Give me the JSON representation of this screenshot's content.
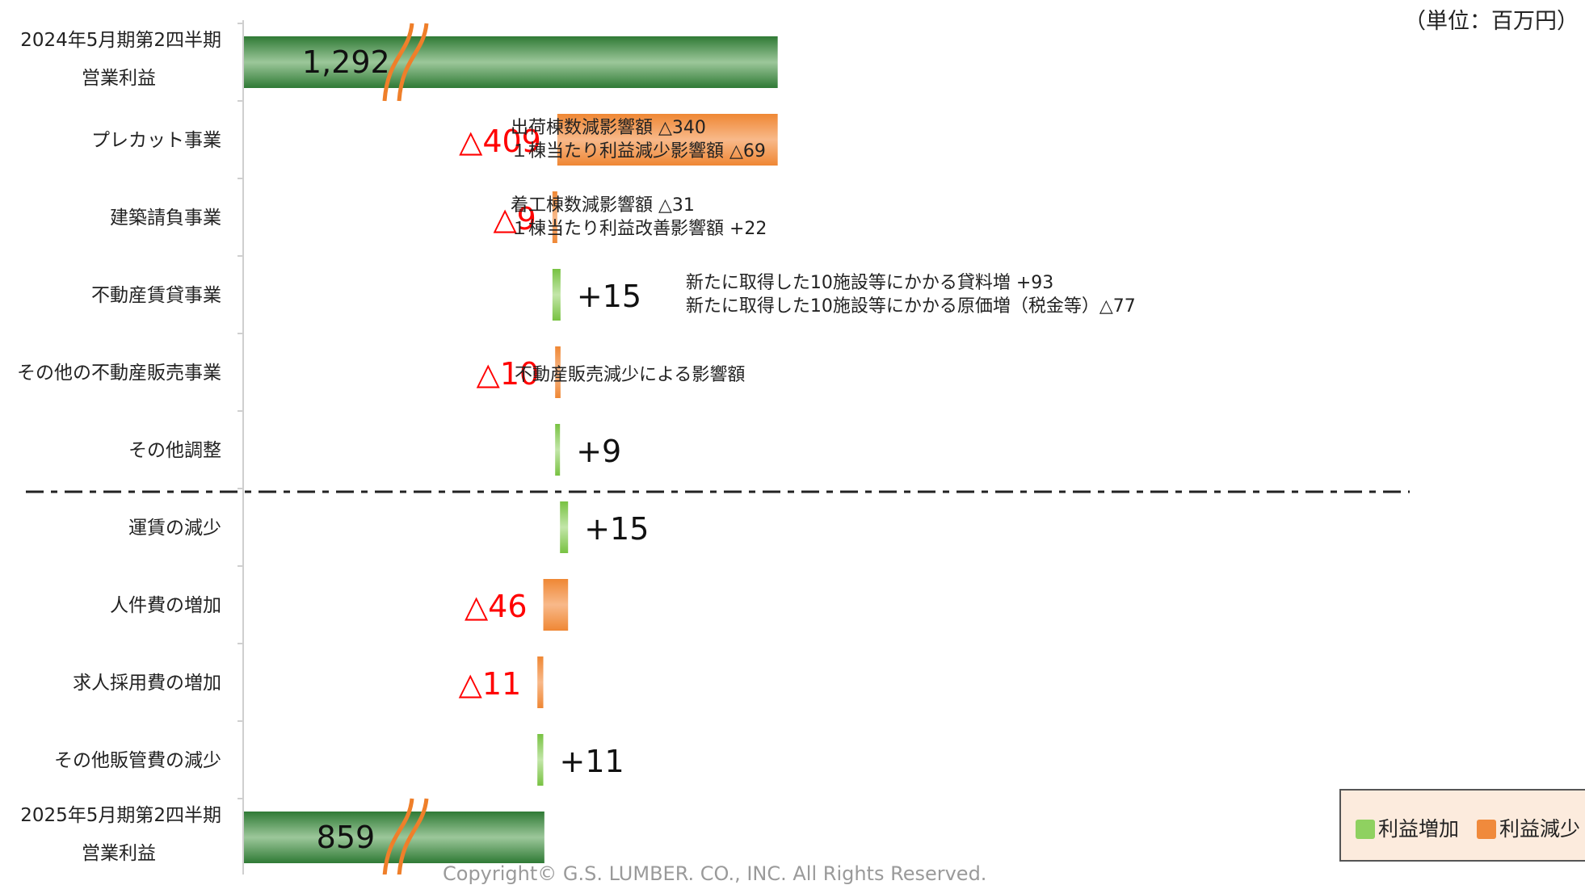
{
  "unit_label": "（単位：百万円）",
  "copyright": "Copyright© G.S. LUMBER. CO., INC. All Rights Reserved.",
  "legend": {
    "increase_label": "利益増加",
    "decrease_label": "利益減少",
    "increase_color": "#8fd160",
    "decrease_color": "#f08a3c",
    "total_color": "#2e7d32",
    "break_color": "#ef7f2a"
  },
  "chart_data": {
    "type": "bar",
    "subtype": "waterfall",
    "orientation": "horizontal",
    "categories": [
      "2024年5月期第2四半期\n営業利益",
      "プレカット事業",
      "建築請負事業",
      "不動産賃貸事業",
      "その他の不動産販売事業",
      "その他調整",
      "運賃の減少",
      "人件費の増加",
      "求人採用費の増加",
      "その他販管費の減少",
      "2025年5月期第2四半期\n営業利益"
    ],
    "values": [
      1292,
      -409,
      -9,
      15,
      -10,
      9,
      15,
      -46,
      -11,
      11,
      859
    ],
    "kinds": [
      "total",
      "decrease",
      "decrease",
      "increase",
      "decrease",
      "increase",
      "increase",
      "decrease",
      "decrease",
      "increase",
      "total"
    ],
    "value_labels": [
      "1,292",
      "△409",
      "△9",
      "+15",
      "△10",
      "+9",
      "+15",
      "△46",
      "△11",
      "+11",
      "859"
    ],
    "annotations": [
      {
        "category": "プレカット事業",
        "lines": [
          "出荷棟数減影響額 △340",
          "１棟当たり利益減少影響額 △69"
        ]
      },
      {
        "category": "建築請負事業",
        "lines": [
          "着工棟数減影響額 △31",
          "１棟当たり利益改善影響額 +22"
        ]
      },
      {
        "category": "不動産賃貸事業",
        "lines": [
          "新たに取得した10施設等にかかる貸料増 +93",
          "新たに取得した10施設等にかかる原価増（税金等）△77"
        ]
      },
      {
        "category": "その他の不動産販売事業",
        "lines": [
          "不動産販売減少による影響額"
        ]
      }
    ],
    "separator_after": "その他調整",
    "axis_break": true,
    "xlim": [
      300,
      1320
    ],
    "grid": false,
    "legend_position": "bottom-right"
  }
}
